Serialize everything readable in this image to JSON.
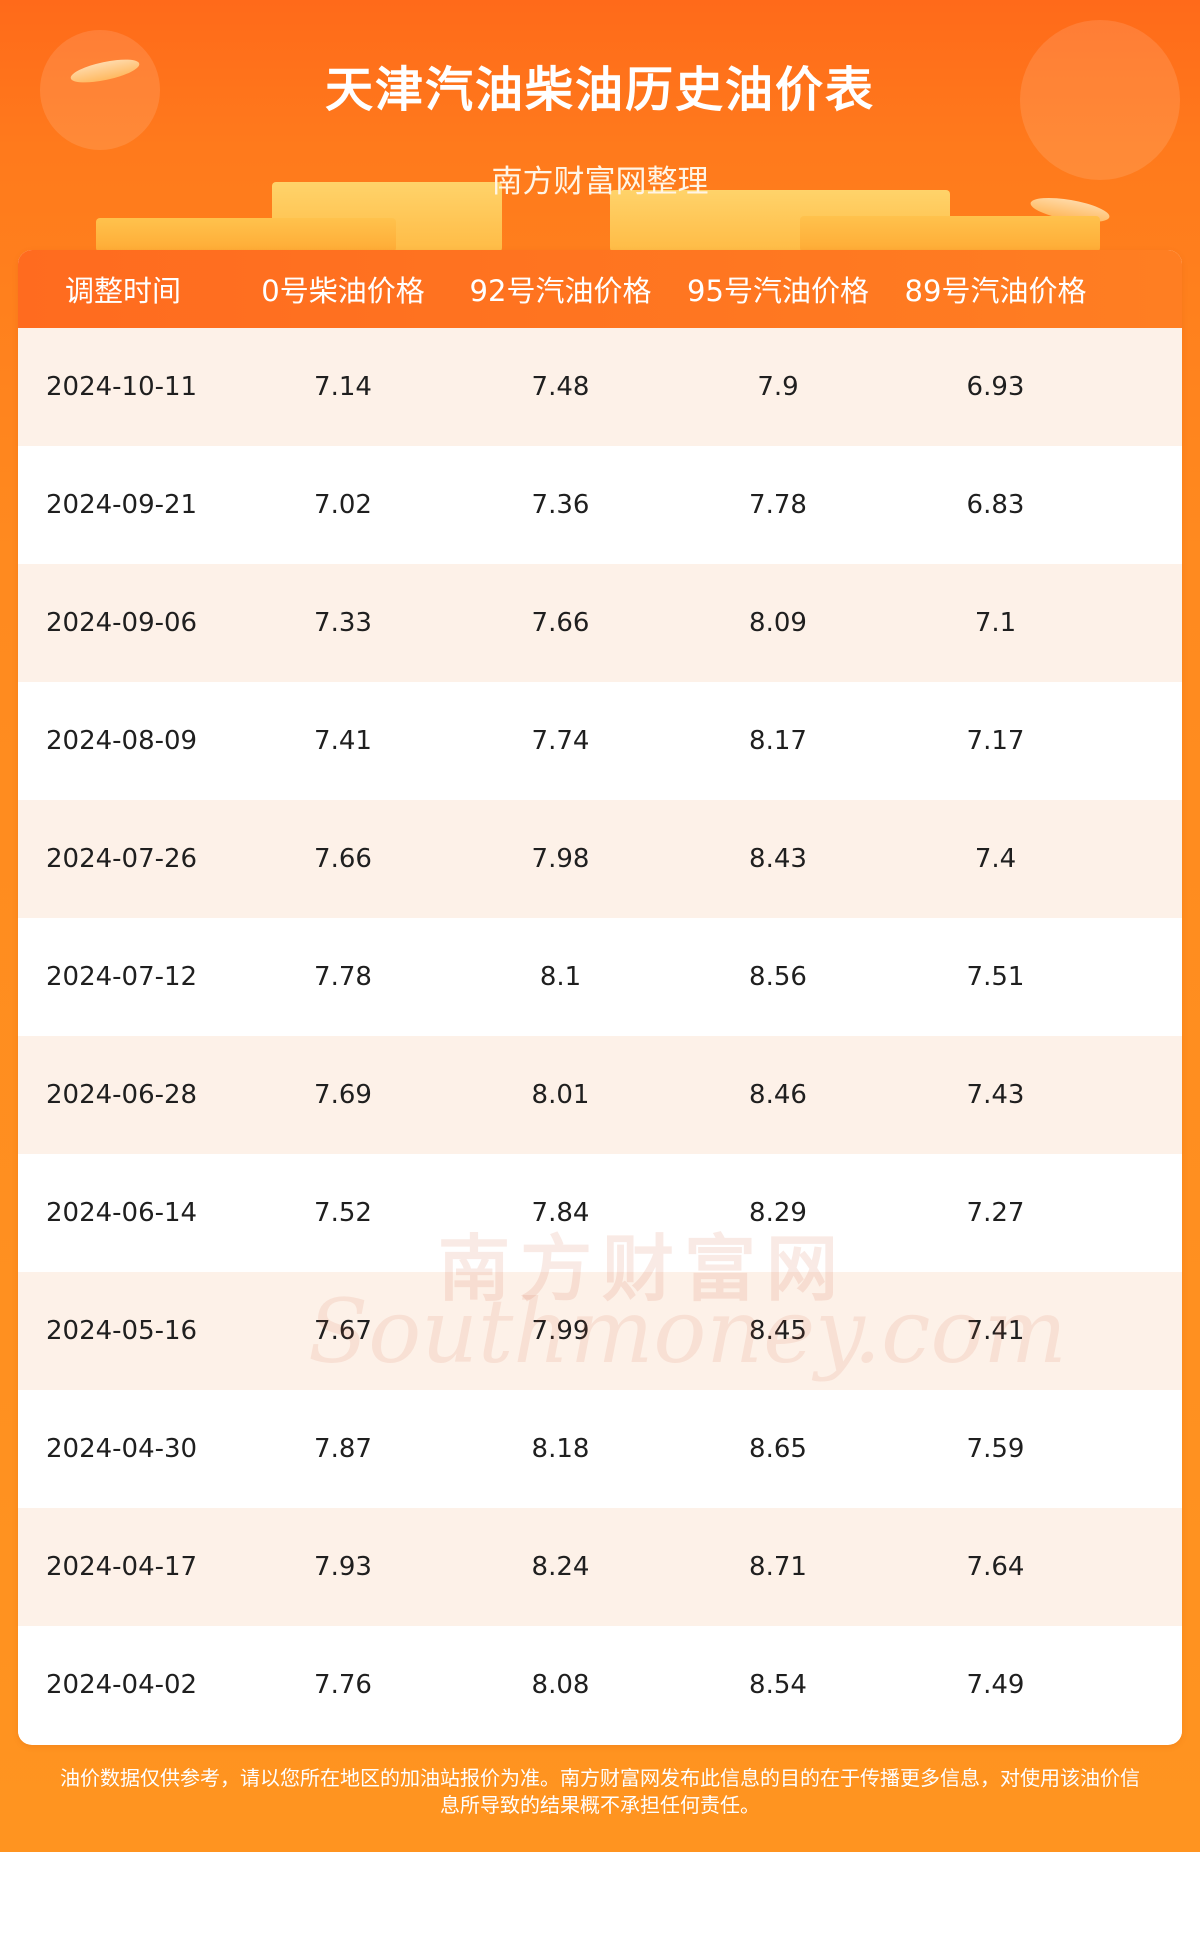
{
  "header": {
    "title": "天津汽油柴油历史油价表",
    "subtitle": "南方财富网整理"
  },
  "table": {
    "columns": [
      "调整时间",
      "0号柴油价格",
      "92号汽油价格",
      "95号汽油价格",
      "89号汽油价格"
    ],
    "rows": [
      [
        "2024-10-11",
        "7.14",
        "7.48",
        "7.9",
        "6.93"
      ],
      [
        "2024-09-21",
        "7.02",
        "7.36",
        "7.78",
        "6.83"
      ],
      [
        "2024-09-06",
        "7.33",
        "7.66",
        "8.09",
        "7.1"
      ],
      [
        "2024-08-09",
        "7.41",
        "7.74",
        "8.17",
        "7.17"
      ],
      [
        "2024-07-26",
        "7.66",
        "7.98",
        "8.43",
        "7.4"
      ],
      [
        "2024-07-12",
        "7.78",
        "8.1",
        "8.56",
        "7.51"
      ],
      [
        "2024-06-28",
        "7.69",
        "8.01",
        "8.46",
        "7.43"
      ],
      [
        "2024-06-14",
        "7.52",
        "7.84",
        "8.29",
        "7.27"
      ],
      [
        "2024-05-16",
        "7.67",
        "7.99",
        "8.45",
        "7.41"
      ],
      [
        "2024-04-30",
        "7.87",
        "8.18",
        "8.65",
        "7.59"
      ],
      [
        "2024-04-17",
        "7.93",
        "8.24",
        "8.71",
        "7.64"
      ],
      [
        "2024-04-02",
        "7.76",
        "8.08",
        "8.54",
        "7.49"
      ]
    ]
  },
  "watermark": {
    "cn": "南方财富网",
    "en": "Southmoney.com"
  },
  "footer": {
    "line1": "油价数据仅供参考，请以您所在地区的加油站报价为准。南方财富网发布此信息的目的在于传播更多信息，对使用该油价信",
    "line2": "息所导致的结果概不承担任何责任。"
  },
  "colors": {
    "header_orange": "#ff6b1f",
    "row_tint": "#fdf1e8"
  }
}
